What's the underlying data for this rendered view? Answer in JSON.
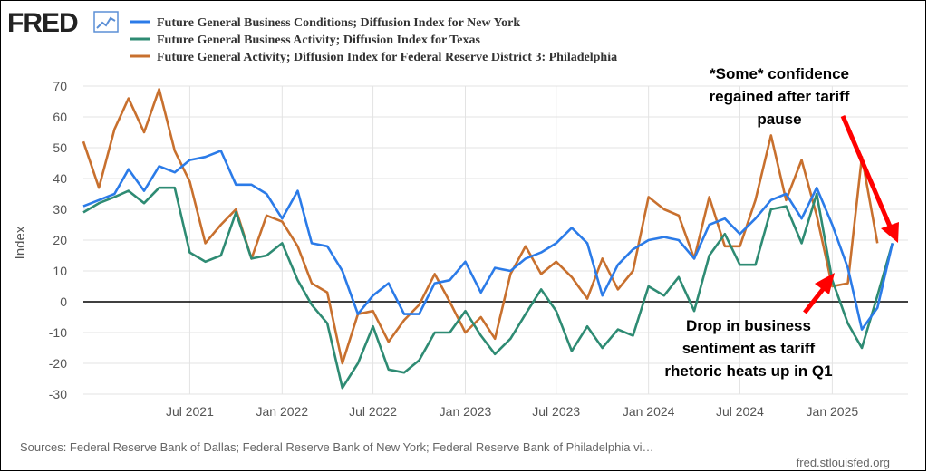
{
  "brand": {
    "logo_text": "FRED"
  },
  "footer": {
    "sources": "Sources: Federal Reserve Bank of Dallas; Federal Reserve Bank of New York; Federal Reserve Bank of Philadelphia vi…",
    "url": "fred.stlouisfed.org"
  },
  "annotations": {
    "top": [
      "*Some* confidence",
      "regained after tariff",
      "pause"
    ],
    "bottom": [
      "Drop in business",
      "sentiment as tariff",
      "rhetoric heats up in Q1"
    ],
    "arrow_color": "#ff0000"
  },
  "chart_data": {
    "type": "line",
    "ylabel": "Index",
    "ylim": [
      -30,
      70
    ],
    "yticks": [
      70,
      60,
      50,
      40,
      30,
      20,
      10,
      0,
      -10,
      -20,
      -30
    ],
    "xlim": [
      "2020-12-01",
      "2025-06-01"
    ],
    "xticks": [
      {
        "date": "2021-07-01",
        "label": "Jul 2021"
      },
      {
        "date": "2022-01-01",
        "label": "Jan 2022"
      },
      {
        "date": "2022-07-01",
        "label": "Jul 2022"
      },
      {
        "date": "2023-01-01",
        "label": "Jan 2023"
      },
      {
        "date": "2023-07-01",
        "label": "Jul 2023"
      },
      {
        "date": "2024-01-01",
        "label": "Jan 2024"
      },
      {
        "date": "2024-07-01",
        "label": "Jul 2024"
      },
      {
        "date": "2025-01-01",
        "label": "Jan 2025"
      }
    ],
    "start_month": "2020-12",
    "grid": true,
    "legend": "top-left",
    "series": [
      {
        "name": "Future General Business Conditions; Diffusion Index for New York",
        "color": "#2b7be8",
        "values": [
          31,
          33,
          35,
          43,
          36,
          44,
          42,
          46,
          47,
          49,
          38,
          38,
          35,
          27,
          36,
          19,
          18,
          10,
          -4,
          2,
          6,
          -4,
          -4,
          6,
          7,
          13,
          3,
          11,
          10,
          14,
          16,
          19,
          24,
          19,
          2,
          12,
          17,
          20,
          21,
          20,
          14,
          25,
          27,
          22,
          27,
          33,
          35,
          27,
          37,
          25,
          11,
          -9,
          -2,
          19
        ]
      },
      {
        "name": "Future General Business Activity; Diffusion Index for Texas",
        "color": "#2e8b73",
        "values": [
          29,
          32,
          34,
          36,
          32,
          37,
          37,
          16,
          13,
          15,
          29,
          14,
          15,
          19,
          7,
          -1,
          -7,
          -28,
          -20,
          -8,
          -22,
          -23,
          -19,
          -10,
          -10,
          -3,
          -11,
          -17,
          -12,
          -4,
          4,
          -3,
          -16,
          -8,
          -15,
          -9,
          -11,
          5,
          2,
          8,
          -3,
          15,
          22,
          12,
          12,
          30,
          31,
          19,
          35,
          7,
          -7,
          -15,
          2,
          19
        ]
      },
      {
        "name": "Future General Activity; Diffusion Index for Federal Reserve District 3: Philadelphia",
        "color": "#c8702e",
        "values": [
          52,
          37,
          56,
          66,
          55,
          69,
          49,
          39,
          19,
          25,
          30,
          14,
          28,
          26,
          18,
          6,
          3,
          -20,
          -4,
          -3,
          -13,
          -6,
          -1,
          9,
          0,
          -10,
          -5,
          -12,
          9,
          18,
          9,
          13,
          8,
          1,
          14,
          4,
          10,
          34,
          30,
          28,
          14,
          34,
          18,
          18,
          33,
          54,
          33,
          46,
          28,
          5,
          6,
          47,
          19
        ]
      }
    ]
  }
}
